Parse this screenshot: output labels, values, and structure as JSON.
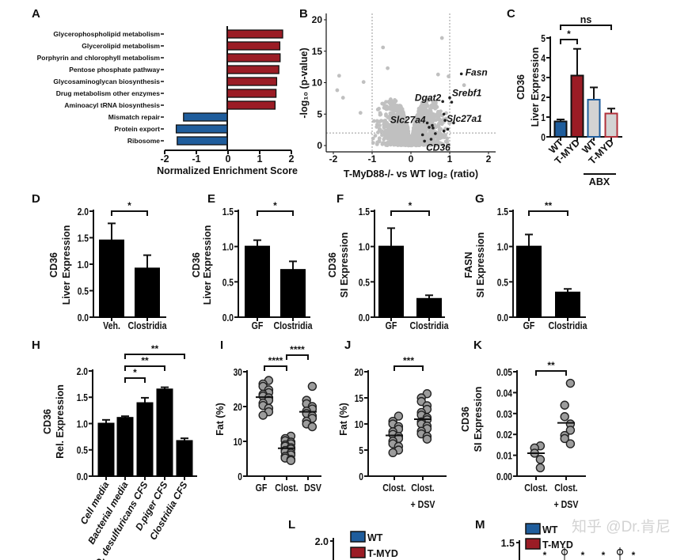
{
  "figure": {
    "panel_labels": [
      "A",
      "B",
      "C",
      "D",
      "E",
      "F",
      "G",
      "H",
      "I",
      "J",
      "K",
      "L",
      "M"
    ],
    "watermark": "知乎 @Dr.肯尼"
  },
  "chart_data": [
    {
      "id": "A",
      "type": "bar",
      "orientation": "horizontal",
      "categories": [
        "Glycerophospholipid metabolism",
        "Glycerolipid metabolism",
        "Porphyrin and chlorophyll metabolism",
        "Pentose phosphate pathway",
        "Glycosaminoglycan biosynthesis",
        "Drug metabolism other enzymes",
        "Aminoacyl tRNA biosynthesis",
        "Mismatch repair",
        "Protein export",
        "Ribosome"
      ],
      "values": [
        1.75,
        1.66,
        1.67,
        1.63,
        1.56,
        1.54,
        1.51,
        -1.38,
        -1.61,
        -1.58
      ],
      "xlim": [
        -2,
        2
      ],
      "xticks": [
        "-2",
        "-1",
        "0",
        "1",
        "2"
      ],
      "xlabel": "Normalized Enrichment Score",
      "colors": {
        "positive": "#9b1c25",
        "negative": "#1f5d9c"
      }
    },
    {
      "id": "B",
      "type": "scatter",
      "xlim": [
        -2.2,
        2.2
      ],
      "ylim": [
        -1,
        21
      ],
      "xticks": [
        "-2",
        "-1",
        "0",
        "1",
        "2"
      ],
      "yticks": [
        "0",
        "5",
        "10",
        "15",
        "20"
      ],
      "xlabel": "T-MyD88-/- vs WT log₂ (ratio)",
      "ylabel": "-log₁₀ (p-value)",
      "thresholds": {
        "x": [
          -1,
          1
        ],
        "y": 2
      },
      "outlier_points": [
        [
          -1.85,
          11.1
        ],
        [
          -1.9,
          8.8
        ],
        [
          -1.75,
          7.6
        ],
        [
          -1.22,
          10.1
        ],
        [
          -0.72,
          15.6
        ],
        [
          0.8,
          17.1
        ],
        [
          0.7,
          11.3
        ],
        [
          0.97,
          11.0
        ],
        [
          1.37,
          9.6
        ],
        [
          -1.3,
          5.2
        ],
        [
          -0.6,
          12.3
        ]
      ],
      "highlighted_points": [
        [
          1.3,
          11.4
        ],
        [
          1.0,
          7.6
        ],
        [
          1.05,
          6.9
        ],
        [
          0.82,
          7.0
        ],
        [
          0.85,
          5.0
        ],
        [
          0.88,
          4.0
        ],
        [
          0.42,
          3.6
        ],
        [
          0.3,
          1.7
        ],
        [
          0.35,
          0.7
        ],
        [
          0.52,
          1.0
        ],
        [
          0.63,
          1.9
        ],
        [
          0.47,
          2.9
        ],
        [
          0.57,
          2.8
        ],
        [
          0.85,
          2.3
        ],
        [
          0.95,
          2.6
        ],
        [
          1.1,
          3.6
        ],
        [
          0.55,
          3.2
        ]
      ],
      "gene_labels": [
        {
          "gene": "Fasn",
          "x": 1.3,
          "y": 11.4
        },
        {
          "gene": "Srebf1",
          "x": 1.0,
          "y": 7.6
        },
        {
          "gene": "Dgat2",
          "x": 0.82,
          "y": 7.0
        },
        {
          "gene": "Slc27a1",
          "x": 0.88,
          "y": 4.0
        },
        {
          "gene": "Slc27a4",
          "x": 0.42,
          "y": 3.6
        },
        {
          "gene": "CD36",
          "x": 0.35,
          "y": 0.7
        }
      ],
      "colors": {
        "background": "#c0c0c0",
        "highlight": "#222222"
      }
    },
    {
      "id": "C",
      "type": "bar",
      "categories": [
        [
          "WT"
        ],
        [
          "T-MYD"
        ],
        [
          "WT"
        ],
        [
          "T-MYD"
        ]
      ],
      "group_label": "ABX",
      "values": [
        0.78,
        3.1,
        1.88,
        1.18
      ],
      "errors": [
        0.1,
        1.35,
        0.62,
        0.25
      ],
      "ylim": [
        0,
        5
      ],
      "yticks": [
        "0",
        "1",
        "2",
        "3",
        "4",
        "5"
      ],
      "ylabel": [
        "CD36",
        "Liver Expression"
      ],
      "fills": [
        "#1f5d9c",
        "#9b1c25",
        "#d3d3d3",
        "#d3d3d3"
      ],
      "strokes": [
        "#111111",
        "#111111",
        "#1f5d9c",
        "#b0303a"
      ],
      "significance": [
        {
          "from": 0,
          "to": 1,
          "label": "*"
        },
        {
          "from": 0,
          "to": 3,
          "label": "ns"
        }
      ]
    },
    {
      "id": "D",
      "type": "bar",
      "categories": [
        [
          "Veh."
        ],
        [
          "Clostridia"
        ]
      ],
      "values": [
        1.45,
        0.92
      ],
      "errors": [
        0.32,
        0.25
      ],
      "ylim": [
        0,
        2.0
      ],
      "yticks": [
        "0.0",
        "0.5",
        "1.0",
        "1.5",
        "2.0"
      ],
      "ylabel": [
        "CD36",
        "Liver Expression"
      ],
      "significance": [
        {
          "from": 0,
          "to": 1,
          "label": "*"
        }
      ]
    },
    {
      "id": "E",
      "type": "bar",
      "categories": [
        [
          "GF"
        ],
        [
          "Clostridia"
        ]
      ],
      "values": [
        1.0,
        0.67
      ],
      "errors": [
        0.09,
        0.12
      ],
      "ylim": [
        0,
        1.5
      ],
      "yticks": [
        "0.0",
        "0.5",
        "1.0",
        "1.5"
      ],
      "ylabel": [
        "CD36",
        "Liver Expression"
      ],
      "significance": [
        {
          "from": 0,
          "to": 1,
          "label": "*"
        }
      ]
    },
    {
      "id": "F",
      "type": "bar",
      "categories": [
        [
          "GF"
        ],
        [
          "Clostridia"
        ]
      ],
      "values": [
        1.0,
        0.26
      ],
      "errors": [
        0.26,
        0.05
      ],
      "ylim": [
        0,
        1.5
      ],
      "yticks": [
        "0.0",
        "0.5",
        "1.0",
        "1.5"
      ],
      "ylabel": [
        "CD36",
        "SI Expression"
      ],
      "significance": [
        {
          "from": 0,
          "to": 1,
          "label": "*"
        }
      ]
    },
    {
      "id": "G",
      "type": "bar",
      "categories": [
        [
          "GF"
        ],
        [
          "Clostridia"
        ]
      ],
      "values": [
        1.0,
        0.35
      ],
      "errors": [
        0.17,
        0.05
      ],
      "ylim": [
        0,
        1.5
      ],
      "yticks": [
        "0.0",
        "0.5",
        "1.0",
        "1.5"
      ],
      "ylabel": [
        "FASN",
        "SI Expression"
      ],
      "significance": [
        {
          "from": 0,
          "to": 1,
          "label": "**"
        }
      ]
    },
    {
      "id": "H",
      "type": "bar",
      "categories": [
        [
          "Cell media"
        ],
        [
          "Bacterial media"
        ],
        [
          "D. desulfuricans CFS"
        ],
        [
          "D.piger CFS"
        ],
        [
          "Clostridia CFS"
        ]
      ],
      "values": [
        1.0,
        1.11,
        1.39,
        1.65,
        0.67
      ],
      "errors": [
        0.07,
        0.03,
        0.1,
        0.04,
        0.05
      ],
      "ylim": [
        0,
        2.0
      ],
      "yticks": [
        "0.0",
        "0.5",
        "1.0",
        "1.5",
        "2.0"
      ],
      "ylabel": [
        "CD36",
        "Rel. Expression"
      ],
      "significance": [
        {
          "from": 1,
          "to": 2,
          "label": "*"
        },
        {
          "from": 1,
          "to": 3,
          "label": "**"
        },
        {
          "from": 1,
          "to": 4,
          "label": "**"
        }
      ]
    },
    {
      "id": "I",
      "type": "scatter",
      "categories": [
        [
          "GF"
        ],
        [
          "Clost."
        ],
        [
          "DSV"
        ]
      ],
      "groups": [
        {
          "mean": 22.7,
          "points": [
            27.5,
            26.5,
            25.8,
            24.8,
            24,
            23.5,
            23,
            22.5,
            21.8,
            21,
            20.3,
            19.5,
            18.5,
            17.5
          ]
        },
        {
          "mean": 8.0,
          "points": [
            11.5,
            10.8,
            10.2,
            9.8,
            9.3,
            9,
            8.6,
            8.2,
            7.8,
            7.4,
            7,
            6.6,
            6.1,
            5.7,
            5.2,
            4.8,
            4.5
          ]
        },
        {
          "mean": 18.5,
          "points": [
            25.8,
            21.8,
            20.8,
            20,
            19.3,
            18.7,
            18,
            17.3,
            16.6,
            15.8,
            15,
            14.2
          ]
        }
      ],
      "ylim": [
        0,
        30
      ],
      "yticks": [
        "0",
        "10",
        "20",
        "30"
      ],
      "ylabel": [
        "Fat (%)"
      ],
      "significance": [
        {
          "from": 0,
          "to": 1,
          "label": "****"
        },
        {
          "from": 1,
          "to": 2,
          "label": "****"
        }
      ]
    },
    {
      "id": "J",
      "type": "scatter",
      "categories": [
        [
          "Clost."
        ],
        [
          "Clost.",
          "+ DSV"
        ]
      ],
      "groups": [
        {
          "mean": 7.8,
          "points": [
            11.5,
            10.5,
            10,
            9.5,
            9,
            8.5,
            8,
            7.6,
            7.2,
            6.7,
            6.2,
            5.7,
            5,
            4.5
          ]
        },
        {
          "mean": 10.9,
          "points": [
            15.8,
            15,
            14.3,
            13.5,
            12.8,
            12.2,
            11.7,
            11.2,
            10.8,
            10.4,
            10,
            9.6,
            9.1,
            8.6,
            8.1,
            7.6,
            7.1
          ]
        }
      ],
      "ylim": [
        0,
        20
      ],
      "yticks": [
        "0",
        "5",
        "10",
        "15",
        "20"
      ],
      "ylabel": [
        "Fat (%)"
      ],
      "significance": [
        {
          "from": 0,
          "to": 1,
          "label": "***"
        }
      ]
    },
    {
      "id": "K",
      "type": "scatter",
      "categories": [
        [
          "Clost."
        ],
        [
          "Clost.",
          "+ DSV"
        ]
      ],
      "groups": [
        {
          "mean": 0.011,
          "points": [
            0.0145,
            0.0135,
            0.011,
            0.008,
            0.004
          ]
        },
        {
          "mean": 0.0255,
          "points": [
            0.0445,
            0.034,
            0.0285,
            0.025,
            0.022,
            0.0195,
            0.018,
            0.0155
          ]
        }
      ],
      "ylim": [
        0,
        0.05
      ],
      "yticks": [
        "0.00",
        "0.01",
        "0.02",
        "0.03",
        "0.04",
        "0.05"
      ],
      "ylabel": [
        "CD36",
        "SI Expression"
      ],
      "significance": [
        {
          "from": 0,
          "to": 1,
          "label": "**"
        }
      ]
    },
    {
      "id": "L",
      "type": "bar",
      "yticks": [
        "2.0"
      ],
      "legend": [
        {
          "name": "WT",
          "color": "#1f5d9c"
        },
        {
          "name": "T-MYD",
          "color": "#9b1c25"
        }
      ]
    },
    {
      "id": "M",
      "type": "bar",
      "yticks": [
        "1.5"
      ],
      "legend": [
        {
          "name": "WT",
          "color": "#1f5d9c"
        },
        {
          "name": "T-MYD",
          "color": "#9b1c25"
        }
      ],
      "annotations": [
        "*",
        "*",
        "*",
        "*"
      ]
    }
  ]
}
